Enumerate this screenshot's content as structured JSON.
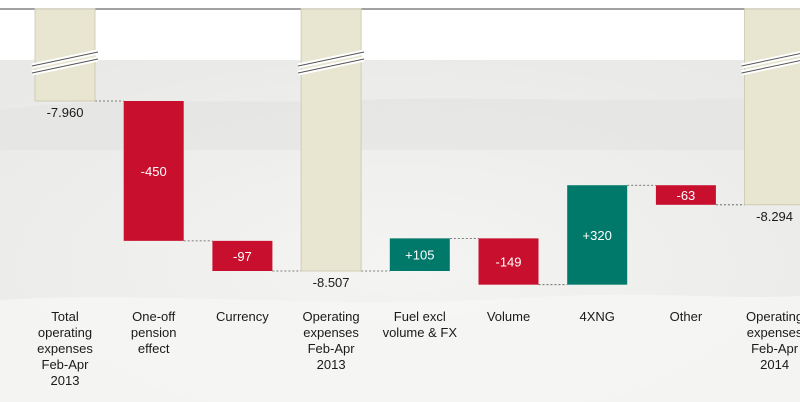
{
  "chart_data": {
    "type": "waterfall",
    "title": "",
    "xlabel": "",
    "ylabel": "",
    "colors": {
      "total": "#e8e6d0",
      "increase_cost": "#c8102e",
      "decrease_cost": "#00796b",
      "connector": "#555555"
    },
    "bars": [
      {
        "category": [
          "Total",
          "operating",
          "expenses",
          "Feb-Apr",
          "2013"
        ],
        "kind": "total",
        "value": -7960,
        "label": "-7.960"
      },
      {
        "category": [
          "One-off",
          "pension",
          "effect"
        ],
        "kind": "delta",
        "value": -450,
        "label": "-450"
      },
      {
        "category": [
          "Currency"
        ],
        "kind": "delta",
        "value": -97,
        "label": "-97"
      },
      {
        "category": [
          "Operating",
          "expenses",
          "Feb-Apr",
          "2013"
        ],
        "kind": "total",
        "value": -8507,
        "label": "-8.507"
      },
      {
        "category": [
          "Fuel excl",
          "volume & FX"
        ],
        "kind": "delta",
        "value": 105,
        "label": "+105"
      },
      {
        "category": [
          "Volume"
        ],
        "kind": "delta",
        "value": -149,
        "label": "-149"
      },
      {
        "category": [
          "4XNG"
        ],
        "kind": "delta",
        "value": 320,
        "label": "+320"
      },
      {
        "category": [
          "Other"
        ],
        "kind": "delta",
        "value": -63,
        "label": "-63"
      },
      {
        "category": [
          "Operating",
          "expenses",
          "Feb-Apr",
          "2014"
        ],
        "kind": "total",
        "value": -8294,
        "label": "-8.294"
      }
    ],
    "axis_break": true
  }
}
